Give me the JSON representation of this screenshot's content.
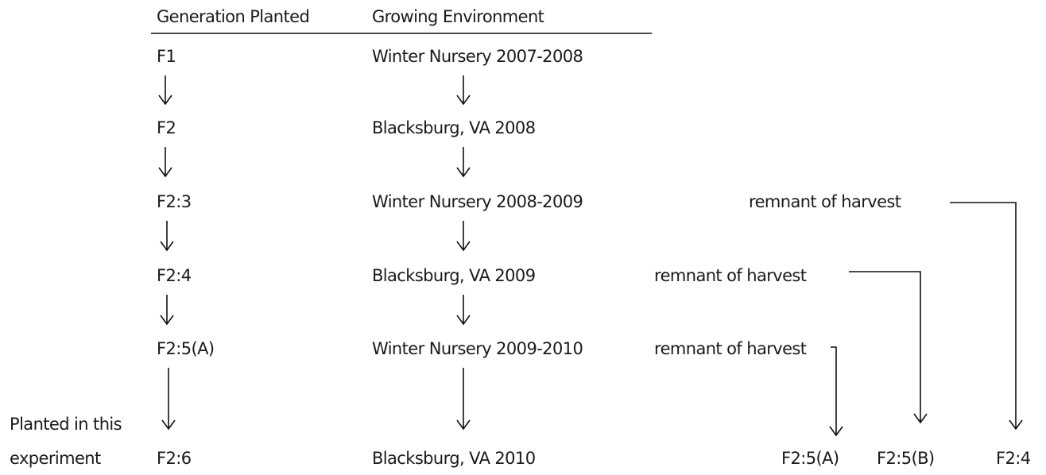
{
  "header": {
    "generation": "Generation Planted",
    "environment": "Growing Environment"
  },
  "rows": [
    {
      "generation": "F1",
      "environment": "Winter Nursery 2007-2008"
    },
    {
      "generation": "F2",
      "environment": "Blacksburg, VA 2008"
    },
    {
      "generation": "F2:3",
      "environment": "Winter Nursery 2008-2009"
    },
    {
      "generation": "F2:4",
      "environment": "Blacksburg, VA 2009"
    },
    {
      "generation": "F2:5(A)",
      "environment": "Winter Nursery 2009-2010"
    },
    {
      "generation": "F2:6",
      "environment": "Blacksburg, VA 2010"
    }
  ],
  "side_note": [
    "Planted in this",
    "experiment"
  ],
  "remnants": [
    "remnant of harvest",
    "remnant of harvest",
    "remnant of harvest"
  ],
  "outputs": [
    "F2:5(A)",
    "F2:5(B)",
    "F2:4"
  ]
}
